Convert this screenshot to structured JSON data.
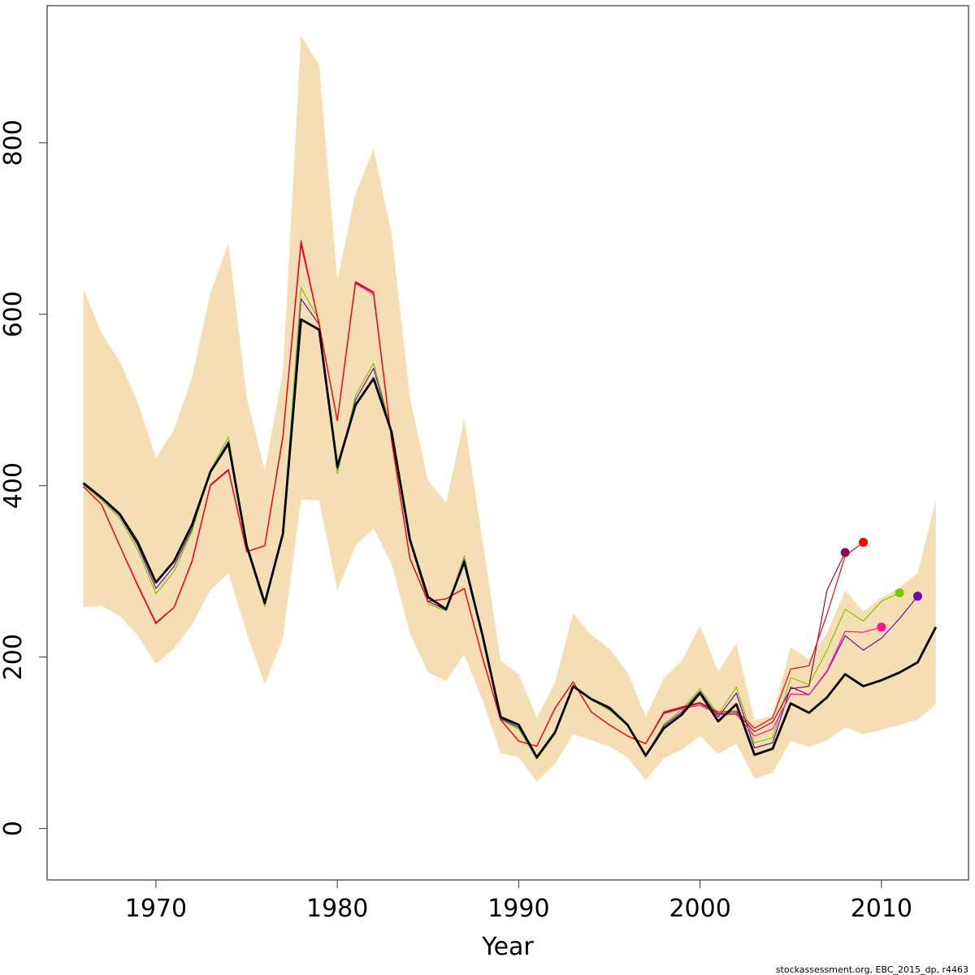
{
  "chart_data": {
    "type": "line",
    "xlabel": "Year",
    "ylabel": "",
    "footnote": "stockassessment.org, EBC_2015_dp, r4463",
    "xlim": [
      1964,
      2014.8
    ],
    "ylim": [
      -60,
      960
    ],
    "x_ticks": [
      1970,
      1980,
      1990,
      2000,
      2010
    ],
    "y_ticks": [
      0,
      200,
      400,
      600,
      800
    ],
    "x_tick_labels": [
      "1970",
      "1980",
      "1990",
      "2000",
      "2010"
    ],
    "y_tick_labels": [
      "0",
      "200",
      "400",
      "600",
      "800"
    ],
    "grid": false,
    "legend": "none",
    "colors": {
      "band": "#f5deb3",
      "estimate": "#000000"
    },
    "confidence_band": {
      "x": [
        1966,
        1967,
        1968,
        1969,
        1970,
        1971,
        1972,
        1973,
        1974,
        1975,
        1976,
        1977,
        1978,
        1979,
        1980,
        1981,
        1982,
        1983,
        1984,
        1985,
        1986,
        1987,
        1988,
        1989,
        1990,
        1991,
        1992,
        1993,
        1994,
        1995,
        1996,
        1997,
        1998,
        1999,
        2000,
        2001,
        2002,
        2003,
        2004,
        2005,
        2006,
        2007,
        2008,
        2009,
        2010,
        2011,
        2012,
        2013
      ],
      "lower": [
        258,
        260,
        248,
        225,
        192,
        210,
        238,
        278,
        298,
        228,
        168,
        222,
        384,
        383,
        278,
        330,
        350,
        308,
        228,
        182,
        172,
        203,
        150,
        88,
        83,
        55,
        75,
        110,
        103,
        96,
        83,
        56,
        82,
        92,
        108,
        87,
        99,
        58,
        65,
        102,
        95,
        103,
        118,
        110,
        115,
        121,
        127,
        145
      ],
      "upper": [
        630,
        578,
        545,
        497,
        432,
        466,
        527,
        625,
        683,
        503,
        418,
        533,
        925,
        890,
        640,
        740,
        793,
        693,
        503,
        406,
        380,
        478,
        337,
        196,
        180,
        129,
        170,
        251,
        226,
        210,
        182,
        131,
        175,
        196,
        237,
        183,
        216,
        126,
        132,
        212,
        197,
        228,
        278,
        253,
        269,
        281,
        298,
        383
      ]
    },
    "series": [
      {
        "role": "current",
        "color": "#000000",
        "x": [
          1966,
          1967,
          1968,
          1969,
          1970,
          1971,
          1972,
          1973,
          1974,
          1975,
          1976,
          1977,
          1978,
          1979,
          1980,
          1981,
          1982,
          1983,
          1984,
          1985,
          1986,
          1987,
          1988,
          1989,
          1990,
          1991,
          1992,
          1993,
          1994,
          1995,
          1996,
          1997,
          1998,
          1999,
          2000,
          2001,
          2002,
          2003,
          2004,
          2005,
          2006,
          2007,
          2008,
          2009,
          2010,
          2011,
          2012,
          2013
        ],
        "values": [
          403,
          386,
          367,
          334,
          287,
          312,
          355,
          416,
          449,
          330,
          263,
          344,
          594,
          582,
          422,
          494,
          525,
          462,
          337,
          270,
          256,
          311,
          226,
          130,
          121,
          83,
          112,
          166,
          151,
          141,
          121,
          85,
          117,
          133,
          158,
          125,
          145,
          86,
          93,
          146,
          135,
          153,
          180,
          166,
          173,
          182,
          194,
          235
        ]
      },
      {
        "role": "peel",
        "color": "#6a0dad",
        "x": [
          1966,
          1967,
          1968,
          1969,
          1970,
          1971,
          1972,
          1973,
          1974,
          1975,
          1976,
          1977,
          1978,
          1979,
          1980,
          1981,
          1982,
          1983,
          1984,
          1985,
          1986,
          1987,
          1988,
          1989,
          1990,
          1991,
          1992,
          1993,
          1994,
          1995,
          1996,
          1997,
          1998,
          1999,
          2000,
          2001,
          2002,
          2003,
          2004,
          2005,
          2006,
          2007,
          2008,
          2009,
          2010,
          2011,
          2012
        ],
        "values": [
          402,
          385,
          365,
          330,
          280,
          306,
          350,
          416,
          452,
          328,
          261,
          345,
          618,
          588,
          418,
          500,
          537,
          463,
          336,
          265,
          255,
          314,
          225,
          128,
          118,
          82,
          111,
          166,
          150,
          139,
          121,
          84,
          120,
          136,
          160,
          130,
          158,
          94,
          100,
          165,
          156,
          183,
          225,
          208,
          222,
          245,
          271
        ]
      },
      {
        "role": "peel",
        "color": "#7ec800",
        "x": [
          1966,
          1967,
          1968,
          1969,
          1970,
          1971,
          1972,
          1973,
          1974,
          1975,
          1976,
          1977,
          1978,
          1979,
          1980,
          1981,
          1982,
          1983,
          1984,
          1985,
          1986,
          1987,
          1988,
          1989,
          1990,
          1991,
          1992,
          1993,
          1994,
          1995,
          1996,
          1997,
          1998,
          1999,
          2000,
          2001,
          2002,
          2003,
          2004,
          2005,
          2006,
          2007,
          2008,
          2009,
          2010,
          2011
        ],
        "values": [
          401,
          383,
          362,
          325,
          274,
          300,
          347,
          418,
          457,
          327,
          259,
          346,
          631,
          593,
          414,
          505,
          543,
          464,
          336,
          262,
          254,
          318,
          224,
          127,
          116,
          81,
          110,
          167,
          150,
          138,
          120,
          84,
          122,
          139,
          163,
          133,
          165,
          100,
          106,
          176,
          168,
          208,
          256,
          242,
          265,
          275
        ]
      },
      {
        "role": "peel",
        "color": "#ff1493",
        "x": [
          1966,
          1967,
          1968,
          1969,
          1970,
          1971,
          1972,
          1973,
          1974,
          1975,
          1976,
          1977,
          1978,
          1979,
          1980,
          1981,
          1982,
          1983,
          1984,
          1985,
          1986,
          1987,
          1988,
          1989,
          1990,
          1991,
          1992,
          1993,
          1994,
          1995,
          1996,
          1997,
          1998,
          1999,
          2000,
          2001,
          2002,
          2003,
          2004,
          2005,
          2006,
          2007,
          2008,
          2009,
          2010
        ],
        "values": [
          399,
          378,
          330,
          284,
          240,
          258,
          312,
          400,
          418,
          323,
          330,
          457,
          681,
          588,
          476,
          636,
          623,
          452,
          315,
          265,
          268,
          280,
          200,
          127,
          102,
          96,
          140,
          171,
          136,
          121,
          108,
          99,
          134,
          140,
          144,
          133,
          133,
          108,
          116,
          157,
          156,
          184,
          230,
          229,
          235
        ]
      },
      {
        "role": "peel",
        "color": "#8b0a50",
        "x": [
          1966,
          1967,
          1968,
          1969,
          1970,
          1971,
          1972,
          1973,
          1974,
          1975,
          1976,
          1977,
          1978,
          1979,
          1980,
          1981,
          1982,
          1983,
          1984,
          1985,
          1986,
          1987,
          1988,
          1989,
          1990,
          1991,
          1992,
          1993,
          1994,
          1995,
          1996,
          1997,
          1998,
          1999,
          2000,
          2001,
          2002,
          2003,
          2004,
          2005,
          2006,
          2007,
          2008
        ],
        "values": [
          399,
          378,
          330,
          283,
          239,
          258,
          313,
          401,
          419,
          323,
          330,
          458,
          684,
          588,
          476,
          637,
          625,
          452,
          315,
          265,
          268,
          280,
          200,
          127,
          102,
          96,
          140,
          171,
          136,
          121,
          108,
          99,
          135,
          141,
          146,
          134,
          135,
          113,
          124,
          163,
          166,
          278,
          322
        ]
      },
      {
        "role": "peel",
        "color": "#ff0000",
        "x": [
          1966,
          1967,
          1968,
          1969,
          1970,
          1971,
          1972,
          1973,
          1974,
          1975,
          1976,
          1977,
          1978,
          1979,
          1980,
          1981,
          1982,
          1983,
          1984,
          1985,
          1986,
          1987,
          1988,
          1989,
          1990,
          1991,
          1992,
          1993,
          1994,
          1995,
          1996,
          1997,
          1998,
          1999,
          2000,
          2001,
          2002,
          2003,
          2004,
          2005,
          2006,
          2007,
          2008,
          2009
        ],
        "values": [
          399,
          378,
          330,
          284,
          240,
          258,
          312,
          400,
          418,
          323,
          330,
          456,
          686,
          588,
          476,
          638,
          626,
          452,
          315,
          265,
          268,
          280,
          200,
          127,
          102,
          96,
          140,
          171,
          136,
          121,
          108,
          99,
          136,
          142,
          147,
          136,
          137,
          117,
          129,
          186,
          190,
          250,
          318,
          334
        ]
      }
    ]
  }
}
